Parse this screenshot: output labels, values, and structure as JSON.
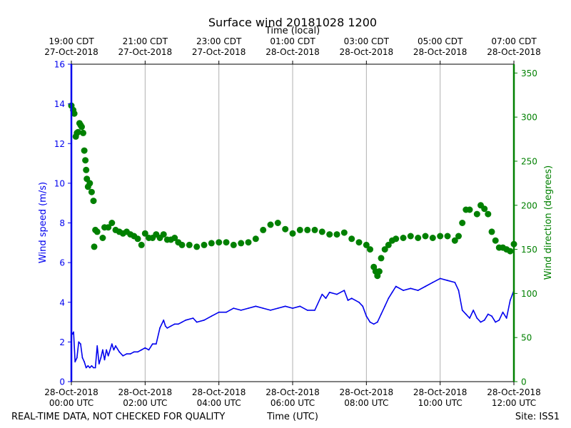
{
  "chart_data": {
    "type": "line",
    "title": "Surface wind 20181028 1200",
    "xlabel_top": "Time (local)",
    "xlabel_bottom": "Time (UTC)",
    "ylabel_left": "Wind speed (m/s)",
    "ylabel_right": "Wind direction (degrees)",
    "xlim_hours": [
      0,
      12
    ],
    "ylim_left": [
      0,
      16
    ],
    "ylim_right": [
      0,
      360
    ],
    "grid": "vertical",
    "bottom_ticks": [
      {
        "hour": 0,
        "date": "28-Oct-2018",
        "time": "00:00 UTC"
      },
      {
        "hour": 2,
        "date": "28-Oct-2018",
        "time": "02:00 UTC"
      },
      {
        "hour": 4,
        "date": "28-Oct-2018",
        "time": "04:00 UTC"
      },
      {
        "hour": 6,
        "date": "28-Oct-2018",
        "time": "06:00 UTC"
      },
      {
        "hour": 8,
        "date": "28-Oct-2018",
        "time": "08:00 UTC"
      },
      {
        "hour": 10,
        "date": "28-Oct-2018",
        "time": "10:00 UTC"
      },
      {
        "hour": 12,
        "date": "28-Oct-2018",
        "time": "12:00 UTC"
      }
    ],
    "top_ticks": [
      {
        "hour": 0,
        "time": "19:00 CDT",
        "date": "27-Oct-2018"
      },
      {
        "hour": 2,
        "time": "21:00 CDT",
        "date": "27-Oct-2018"
      },
      {
        "hour": 4,
        "time": "23:00 CDT",
        "date": "27-Oct-2018"
      },
      {
        "hour": 6,
        "time": "01:00 CDT",
        "date": "28-Oct-2018"
      },
      {
        "hour": 8,
        "time": "03:00 CDT",
        "date": "28-Oct-2018"
      },
      {
        "hour": 10,
        "time": "05:00 CDT",
        "date": "28-Oct-2018"
      },
      {
        "hour": 12,
        "time": "07:00 CDT",
        "date": "28-Oct-2018"
      }
    ],
    "left_ticks": [
      0,
      2,
      4,
      6,
      8,
      10,
      12,
      14,
      16
    ],
    "right_ticks": [
      0,
      50,
      100,
      150,
      200,
      250,
      300,
      350
    ],
    "series": [
      {
        "name": "Wind speed",
        "axis": "left",
        "style": "line",
        "color": "#0000ee",
        "points": [
          [
            0.0,
            2.5
          ],
          [
            0.03,
            2.4
          ],
          [
            0.06,
            2.5
          ],
          [
            0.1,
            1.0
          ],
          [
            0.15,
            1.2
          ],
          [
            0.2,
            2.0
          ],
          [
            0.25,
            1.9
          ],
          [
            0.3,
            1.2
          ],
          [
            0.35,
            1.0
          ],
          [
            0.4,
            0.7
          ],
          [
            0.45,
            0.8
          ],
          [
            0.5,
            0.7
          ],
          [
            0.55,
            0.8
          ],
          [
            0.6,
            0.7
          ],
          [
            0.65,
            0.7
          ],
          [
            0.7,
            1.8
          ],
          [
            0.75,
            0.9
          ],
          [
            0.8,
            1.2
          ],
          [
            0.85,
            1.6
          ],
          [
            0.9,
            1.1
          ],
          [
            0.95,
            1.6
          ],
          [
            1.0,
            1.3
          ],
          [
            1.05,
            1.6
          ],
          [
            1.1,
            1.9
          ],
          [
            1.15,
            1.6
          ],
          [
            1.2,
            1.8
          ],
          [
            1.3,
            1.5
          ],
          [
            1.4,
            1.3
          ],
          [
            1.5,
            1.4
          ],
          [
            1.6,
            1.4
          ],
          [
            1.7,
            1.5
          ],
          [
            1.8,
            1.5
          ],
          [
            1.9,
            1.6
          ],
          [
            2.0,
            1.7
          ],
          [
            2.1,
            1.6
          ],
          [
            2.2,
            1.9
          ],
          [
            2.3,
            1.9
          ],
          [
            2.4,
            2.7
          ],
          [
            2.5,
            3.1
          ],
          [
            2.55,
            2.8
          ],
          [
            2.6,
            2.7
          ],
          [
            2.7,
            2.8
          ],
          [
            2.8,
            2.9
          ],
          [
            2.9,
            2.9
          ],
          [
            3.0,
            3.0
          ],
          [
            3.1,
            3.1
          ],
          [
            3.3,
            3.2
          ],
          [
            3.4,
            3.0
          ],
          [
            3.6,
            3.1
          ],
          [
            3.8,
            3.3
          ],
          [
            4.0,
            3.5
          ],
          [
            4.2,
            3.5
          ],
          [
            4.4,
            3.7
          ],
          [
            4.6,
            3.6
          ],
          [
            4.8,
            3.7
          ],
          [
            5.0,
            3.8
          ],
          [
            5.2,
            3.7
          ],
          [
            5.4,
            3.6
          ],
          [
            5.6,
            3.7
          ],
          [
            5.8,
            3.8
          ],
          [
            6.0,
            3.7
          ],
          [
            6.2,
            3.8
          ],
          [
            6.4,
            3.6
          ],
          [
            6.6,
            3.6
          ],
          [
            6.8,
            4.4
          ],
          [
            6.9,
            4.2
          ],
          [
            7.0,
            4.5
          ],
          [
            7.2,
            4.4
          ],
          [
            7.4,
            4.6
          ],
          [
            7.5,
            4.1
          ],
          [
            7.6,
            4.2
          ],
          [
            7.8,
            4.0
          ],
          [
            7.9,
            3.8
          ],
          [
            8.0,
            3.3
          ],
          [
            8.1,
            3.0
          ],
          [
            8.2,
            2.9
          ],
          [
            8.3,
            3.0
          ],
          [
            8.4,
            3.4
          ],
          [
            8.5,
            3.8
          ],
          [
            8.6,
            4.2
          ],
          [
            8.7,
            4.5
          ],
          [
            8.8,
            4.8
          ],
          [
            9.0,
            4.6
          ],
          [
            9.2,
            4.7
          ],
          [
            9.4,
            4.6
          ],
          [
            9.6,
            4.8
          ],
          [
            9.8,
            5.0
          ],
          [
            10.0,
            5.2
          ],
          [
            10.2,
            5.1
          ],
          [
            10.4,
            5.0
          ],
          [
            10.5,
            4.6
          ],
          [
            10.6,
            3.6
          ],
          [
            10.7,
            3.4
          ],
          [
            10.8,
            3.2
          ],
          [
            10.9,
            3.6
          ],
          [
            11.0,
            3.2
          ],
          [
            11.1,
            3.0
          ],
          [
            11.2,
            3.1
          ],
          [
            11.3,
            3.4
          ],
          [
            11.4,
            3.3
          ],
          [
            11.5,
            3.0
          ],
          [
            11.6,
            3.1
          ],
          [
            11.7,
            3.5
          ],
          [
            11.8,
            3.2
          ],
          [
            11.9,
            4.1
          ],
          [
            12.0,
            4.6
          ]
        ]
      },
      {
        "name": "Wind direction",
        "axis": "right",
        "style": "markers",
        "color": "#008000",
        "points": [
          [
            0.0,
            313
          ],
          [
            0.05,
            308
          ],
          [
            0.08,
            304
          ],
          [
            0.12,
            278
          ],
          [
            0.15,
            282
          ],
          [
            0.18,
            283
          ],
          [
            0.22,
            293
          ],
          [
            0.25,
            291
          ],
          [
            0.28,
            289
          ],
          [
            0.32,
            282
          ],
          [
            0.35,
            262
          ],
          [
            0.38,
            251
          ],
          [
            0.4,
            240
          ],
          [
            0.42,
            230
          ],
          [
            0.45,
            221
          ],
          [
            0.5,
            225
          ],
          [
            0.55,
            215
          ],
          [
            0.6,
            205
          ],
          [
            0.62,
            153
          ],
          [
            0.65,
            172
          ],
          [
            0.7,
            170
          ],
          [
            0.85,
            163
          ],
          [
            0.9,
            175
          ],
          [
            1.0,
            175
          ],
          [
            1.1,
            180
          ],
          [
            1.2,
            172
          ],
          [
            1.3,
            170
          ],
          [
            1.4,
            168
          ],
          [
            1.5,
            170
          ],
          [
            1.6,
            167
          ],
          [
            1.7,
            165
          ],
          [
            1.8,
            162
          ],
          [
            1.9,
            155
          ],
          [
            2.0,
            168
          ],
          [
            2.1,
            163
          ],
          [
            2.2,
            163
          ],
          [
            2.3,
            167
          ],
          [
            2.4,
            163
          ],
          [
            2.5,
            167
          ],
          [
            2.6,
            161
          ],
          [
            2.7,
            161
          ],
          [
            2.8,
            163
          ],
          [
            2.9,
            158
          ],
          [
            3.0,
            155
          ],
          [
            3.2,
            155
          ],
          [
            3.4,
            153
          ],
          [
            3.6,
            155
          ],
          [
            3.8,
            157
          ],
          [
            4.0,
            158
          ],
          [
            4.2,
            158
          ],
          [
            4.4,
            155
          ],
          [
            4.6,
            157
          ],
          [
            4.8,
            158
          ],
          [
            5.0,
            162
          ],
          [
            5.2,
            172
          ],
          [
            5.4,
            178
          ],
          [
            5.6,
            180
          ],
          [
            5.8,
            173
          ],
          [
            6.0,
            168
          ],
          [
            6.2,
            172
          ],
          [
            6.4,
            172
          ],
          [
            6.6,
            172
          ],
          [
            6.8,
            170
          ],
          [
            7.0,
            167
          ],
          [
            7.2,
            167
          ],
          [
            7.4,
            169
          ],
          [
            7.6,
            162
          ],
          [
            7.8,
            158
          ],
          [
            8.0,
            155
          ],
          [
            8.1,
            150
          ],
          [
            8.2,
            130
          ],
          [
            8.25,
            125
          ],
          [
            8.3,
            120
          ],
          [
            8.35,
            125
          ],
          [
            8.4,
            140
          ],
          [
            8.5,
            150
          ],
          [
            8.6,
            155
          ],
          [
            8.7,
            160
          ],
          [
            8.8,
            162
          ],
          [
            9.0,
            163
          ],
          [
            9.2,
            165
          ],
          [
            9.4,
            163
          ],
          [
            9.6,
            165
          ],
          [
            9.8,
            163
          ],
          [
            10.0,
            165
          ],
          [
            10.2,
            165
          ],
          [
            10.4,
            160
          ],
          [
            10.5,
            165
          ],
          [
            10.6,
            180
          ],
          [
            10.7,
            195
          ],
          [
            10.8,
            195
          ],
          [
            11.0,
            190
          ],
          [
            11.1,
            200
          ],
          [
            11.2,
            196
          ],
          [
            11.3,
            190
          ],
          [
            11.4,
            170
          ],
          [
            11.5,
            160
          ],
          [
            11.6,
            152
          ],
          [
            11.7,
            152
          ],
          [
            11.8,
            150
          ],
          [
            11.9,
            148
          ],
          [
            12.0,
            156
          ]
        ]
      }
    ]
  },
  "footer": {
    "left": "REAL-TIME DATA, NOT CHECKED FOR QUALITY",
    "center": "Time (UTC)",
    "right": "Site: ISS1"
  },
  "colors": {
    "speed": "#0000ee",
    "direction": "#008000",
    "grid": "#b0b0b0",
    "axis": "#000000"
  }
}
